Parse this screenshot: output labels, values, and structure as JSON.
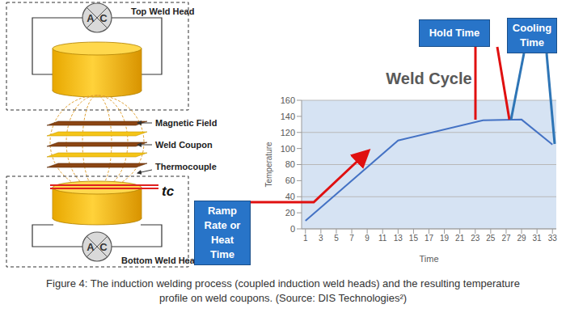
{
  "chart_data": {
    "type": "line",
    "title": "Weld Cycle",
    "x_label": "Time",
    "y_label": "Temperature",
    "x": [
      1,
      13,
      24,
      29,
      33
    ],
    "values": [
      10,
      110,
      135,
      136,
      105
    ],
    "color": "#4472c4",
    "xlim": [
      0.5,
      33.5
    ],
    "xticks": [
      1,
      3,
      5,
      7,
      9,
      11,
      13,
      15,
      17,
      19,
      21,
      23,
      25,
      27,
      29,
      31,
      33
    ],
    "ylim": [
      0,
      160
    ],
    "yticks": [
      0,
      20,
      40,
      60,
      80,
      100,
      120,
      140,
      160
    ],
    "grid": true,
    "annotations": [
      "Ramp Rate or Heat Time",
      "Hold Time",
      "Cooling Time"
    ]
  },
  "diagram": {
    "top_head": "Top Weld Head",
    "bottom_head": "Bottom Weld Head",
    "magnetic_field": "Magnetic Field",
    "weld_coupon": "Weld Coupon",
    "thermocouple": "Thermocouple",
    "tc": "tc",
    "source_symbol": [
      "A",
      "C"
    ]
  },
  "caption": "Figure 4: The induction welding process (coupled induction weld heads) and the resulting temperature profile on weld coupons. (Source: DIS Technologies²)"
}
